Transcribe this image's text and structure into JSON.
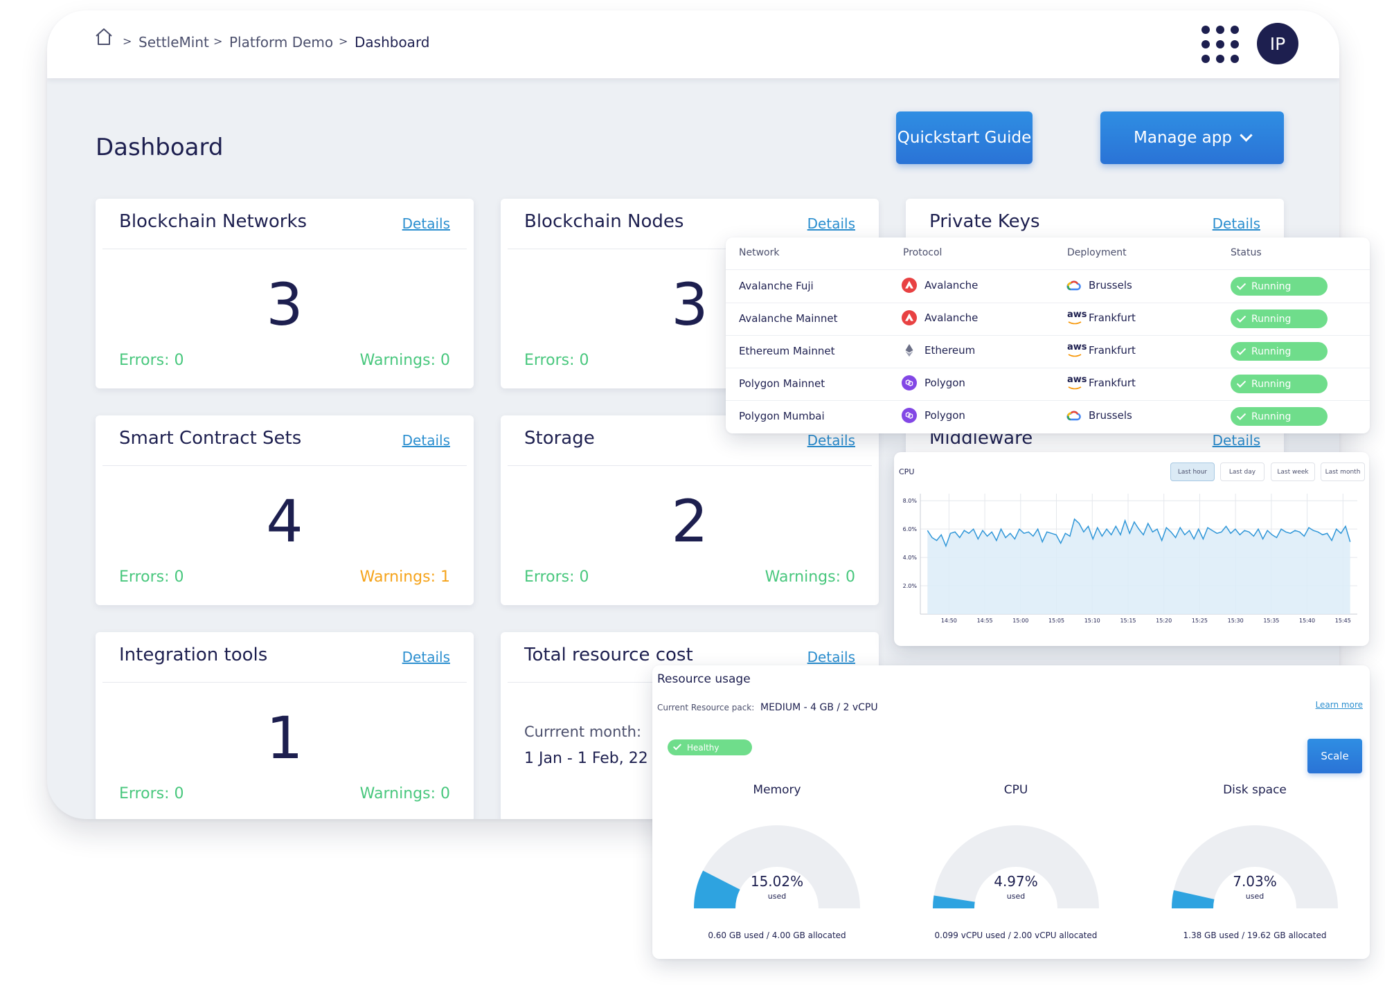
{
  "breadcrumb": {
    "items": [
      "SettleMint",
      "Platform Demo",
      "Dashboard"
    ]
  },
  "header": {
    "avatar_initials": "IP"
  },
  "page": {
    "title": "Dashboard"
  },
  "actions": {
    "quickstart_label": "Quickstart Guide",
    "manage_label": "Manage app"
  },
  "cards": {
    "networks": {
      "title": "Blockchain Networks",
      "details": "Details",
      "count": "3",
      "errors": "Errors: 0",
      "warnings": "Warnings: 0"
    },
    "nodes": {
      "title": "Blockchain Nodes",
      "details": "Details",
      "count": "3",
      "errors": "Errors: 0"
    },
    "keys": {
      "title": "Private Keys",
      "details": "Details"
    },
    "contracts": {
      "title": "Smart Contract Sets",
      "details": "Details",
      "count": "4",
      "errors": "Errors: 0",
      "warnings": "Warnings: 1"
    },
    "storage": {
      "title": "Storage",
      "details": "Details",
      "count": "2",
      "errors": "Errors: 0",
      "warnings": "Warnings: 0"
    },
    "middleware": {
      "title": "Middleware",
      "details": "Details"
    },
    "integration": {
      "title": "Integration tools",
      "details": "Details",
      "count": "1",
      "errors": "Errors: 0",
      "warnings": "Warnings: 0"
    },
    "cost": {
      "title": "Total resource cost",
      "details": "Details",
      "month_label": "Currrent month:",
      "range": "1 Jan - 1 Feb, 22"
    }
  },
  "network_table": {
    "headers": [
      "Network",
      "Protocol",
      "Deployment",
      "Status"
    ],
    "rows": [
      {
        "network": "Avalanche Fuji",
        "protocol": "Avalanche",
        "protocol_icon": "avalanche-icon",
        "deployment": "Brussels",
        "deployment_icon": "google-cloud-icon",
        "status": "Running"
      },
      {
        "network": "Avalanche Mainnet",
        "protocol": "Avalanche",
        "protocol_icon": "avalanche-icon",
        "deployment": "Frankfurt",
        "deployment_icon": "aws-icon",
        "status": "Running"
      },
      {
        "network": "Ethereum Mainnet",
        "protocol": "Ethereum",
        "protocol_icon": "ethereum-icon",
        "deployment": "Frankfurt",
        "deployment_icon": "aws-icon",
        "status": "Running"
      },
      {
        "network": "Polygon Mainnet",
        "protocol": "Polygon",
        "protocol_icon": "polygon-icon",
        "deployment": "Frankfurt",
        "deployment_icon": "aws-icon",
        "status": "Running"
      },
      {
        "network": "Polygon Mumbai",
        "protocol": "Polygon",
        "protocol_icon": "polygon-icon",
        "deployment": "Brussels",
        "deployment_icon": "google-cloud-icon",
        "status": "Running"
      }
    ],
    "aws_text": "aws"
  },
  "cpu_panel": {
    "label": "CPU",
    "ranges": [
      "Last hour",
      "Last day",
      "Last week",
      "Last month"
    ],
    "active_range": "Last hour"
  },
  "chart_data": {
    "type": "area",
    "title": "CPU",
    "x_ticks": [
      "14:50",
      "14:55",
      "15:00",
      "15:05",
      "15:10",
      "15:15",
      "15:20",
      "15:25",
      "15:30",
      "15:35",
      "15:40",
      "15:45"
    ],
    "y_ticks": [
      "2.0%",
      "4.0%",
      "6.0%",
      "8.0%"
    ],
    "ylim": [
      0,
      8.5
    ],
    "x_range_minutes_from_first_tick": [
      -4,
      57
    ],
    "grid": true,
    "series": [
      {
        "values": [
          5.9,
          5.4,
          5.2,
          5.6,
          4.8,
          5.7,
          5.8,
          5.4,
          5.9,
          5.7,
          6.0,
          5.3,
          5.9,
          5.5,
          5.8,
          5.2,
          6.0,
          5.4,
          5.7,
          5.3,
          6.0,
          5.7,
          5.8,
          5.5,
          6.0,
          5.1,
          5.8,
          5.7,
          5.6,
          5.0,
          5.7,
          5.5,
          6.7,
          6.4,
          5.8,
          6.2,
          5.3,
          6.1,
          5.5,
          6.0,
          5.6,
          6.2,
          5.6,
          6.6,
          5.7,
          6.5,
          6.0,
          5.6,
          6.4,
          5.8,
          6.0,
          5.2,
          6.1,
          5.8,
          5.4,
          6.1,
          5.6,
          5.9,
          5.3,
          6.0,
          5.3,
          6.1,
          5.9,
          5.7,
          5.8,
          6.2,
          5.7,
          6.0,
          5.6,
          5.9,
          5.8,
          5.5,
          6.0,
          5.3,
          5.9,
          5.6,
          5.4,
          6.0,
          5.8,
          5.7,
          5.9,
          5.8,
          5.5,
          6.1,
          5.9,
          5.8,
          5.6,
          5.7,
          5.2,
          6.0,
          5.7,
          6.2,
          5.1
        ]
      }
    ]
  },
  "resources": {
    "title": "Resource usage",
    "pack_label": "Current Resource pack:",
    "pack_value": "MEDIUM -  4 GB / 2 vCPU",
    "learn_more": "Learn more",
    "health": "Healthy",
    "scale_label": "Scale",
    "used_word": "used",
    "gauges": [
      {
        "title": "Memory",
        "percent_label": "15.02%",
        "fraction": 0.1502,
        "footer": "0.60 GB used / 4.00 GB allocated"
      },
      {
        "title": "CPU",
        "percent_label": "4.97%",
        "fraction": 0.0497,
        "footer": "0.099 vCPU used / 2.00 vCPU allocated"
      },
      {
        "title": "Disk space",
        "percent_label": "7.03%",
        "fraction": 0.0703,
        "footer": "1.38 GB used / 19.62 GB allocated"
      }
    ]
  },
  "colors": {
    "accent": "#2a7fdc",
    "navy": "#1d1f4f",
    "success": "#6fdd8b",
    "warning": "#f5a31a",
    "link": "#2a8ecf",
    "gauge_fill": "#2ea3e0",
    "gauge_track": "#eceef2"
  }
}
